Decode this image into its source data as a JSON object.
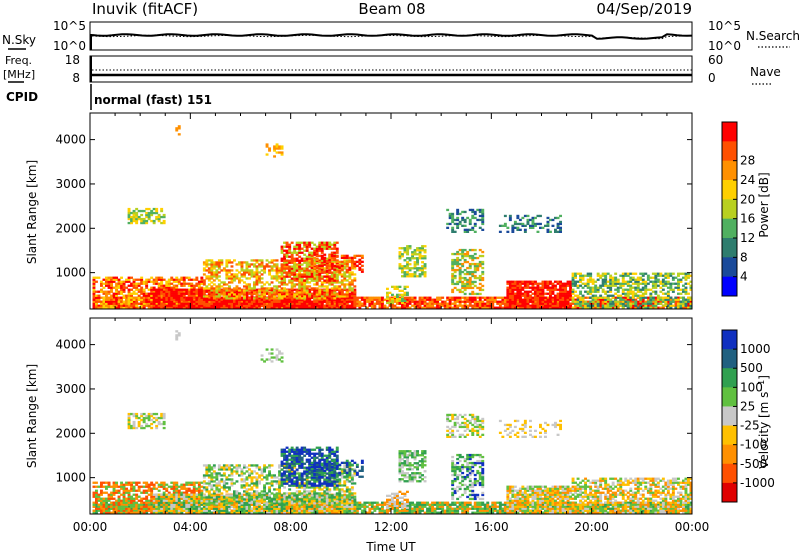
{
  "header": {
    "station": "Inuvik (fitACF)",
    "beam": "Beam 08",
    "date": "04/Sep/2019"
  },
  "panels": {
    "nsky_label": "N.Sky",
    "nsky_top": "10^5",
    "nsky_bottom": "10^0",
    "nsearch_label": "N.Search",
    "nsearch_top": "10^5",
    "nsearch_bottom": "10^0",
    "freq_label_1": "Freq.",
    "freq_label_2": "[MHz]",
    "freq_top": "18",
    "freq_bottom": "8",
    "nave_label": "Nave",
    "nave_top": "60",
    "nave_bottom": "0",
    "cpid_label": "CPID",
    "cpid_value": "normal (fast) 151"
  },
  "colors": {
    "power": [
      "#0000ff",
      "#1a4a9a",
      "#2e7d6e",
      "#50b060",
      "#b8d020",
      "#ffd000",
      "#ff9000",
      "#ff5000",
      "#ff0000"
    ],
    "velocity": [
      "#e00000",
      "#ff5000",
      "#ff9000",
      "#ffc000",
      "#c8c8c8",
      "#60c040",
      "#30a050",
      "#206080",
      "#1030c0"
    ]
  },
  "chart_data": [
    {
      "type": "heatmap",
      "name": "power",
      "xlabel": "",
      "ylabel": "Slant Range [km]",
      "xlim": [
        0,
        24
      ],
      "ylim": [
        180,
        4600
      ],
      "yticks": [
        "1000",
        "2000",
        "3000",
        "4000"
      ],
      "colorbar_label": "Power [dB]",
      "colorbar_ticks": [
        "4",
        "8",
        "12",
        "16",
        "20",
        "24",
        "28"
      ],
      "grid": false
    },
    {
      "type": "heatmap",
      "name": "velocity",
      "xlabel": "Time UT",
      "ylabel": "Slant Range [km]",
      "xlim": [
        0,
        24
      ],
      "ylim": [
        180,
        4600
      ],
      "xticks": [
        "00:00",
        "04:00",
        "08:00",
        "12:00",
        "16:00",
        "20:00",
        "00:00"
      ],
      "yticks": [
        "1000",
        "2000",
        "3000",
        "4000"
      ],
      "colorbar_label": "Velocity [m s^-1]",
      "colorbar_ticks": [
        "1000",
        "500",
        "100",
        "25",
        "-25",
        "-100",
        "-500",
        "-1000"
      ],
      "grid": false
    }
  ]
}
